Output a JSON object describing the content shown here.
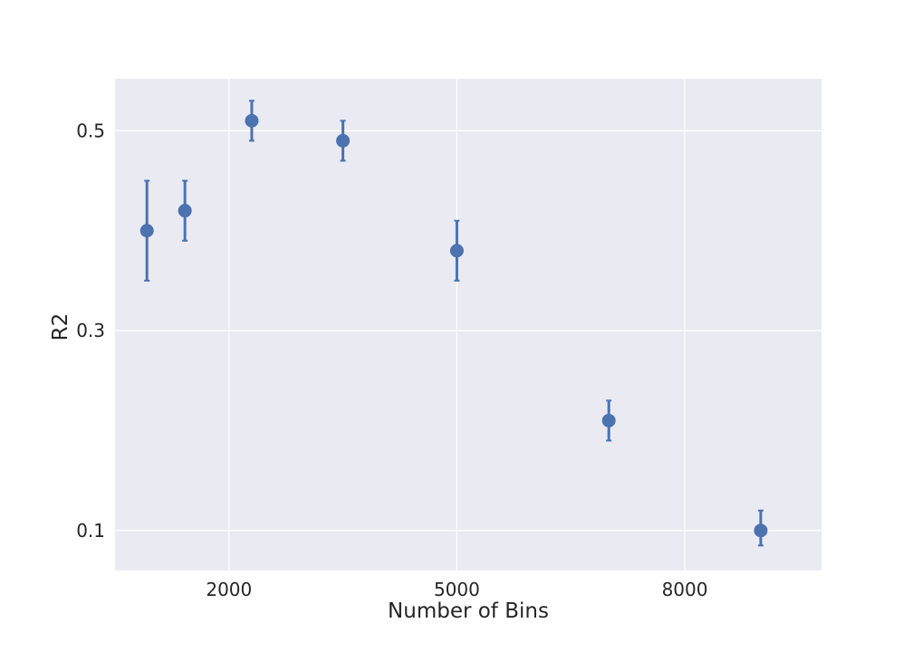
{
  "chart_data": {
    "type": "scatter",
    "title": "",
    "xlabel": "Number of Bins",
    "ylabel": "R2",
    "xlim": [
      500,
      9800
    ],
    "ylim": [
      0.06,
      0.552
    ],
    "x_ticks": [
      2000,
      5000,
      8000
    ],
    "y_ticks": [
      0.1,
      0.3,
      0.5
    ],
    "x_tick_labels": [
      "2000",
      "5000",
      "8000"
    ],
    "y_tick_labels": [
      "0.1",
      "0.3",
      "0.5"
    ],
    "grid": true,
    "series": [
      {
        "color": "#4c72b0",
        "points": [
          {
            "x": 920,
            "y": 0.4,
            "err_low": 0.35,
            "err_high": 0.45
          },
          {
            "x": 1420,
            "y": 0.42,
            "err_low": 0.39,
            "err_high": 0.45
          },
          {
            "x": 2300,
            "y": 0.51,
            "err_low": 0.49,
            "err_high": 0.53
          },
          {
            "x": 3500,
            "y": 0.49,
            "err_low": 0.47,
            "err_high": 0.51
          },
          {
            "x": 5000,
            "y": 0.38,
            "err_low": 0.35,
            "err_high": 0.41
          },
          {
            "x": 7000,
            "y": 0.21,
            "err_low": 0.19,
            "err_high": 0.23
          },
          {
            "x": 9000,
            "y": 0.1,
            "err_low": 0.085,
            "err_high": 0.12
          }
        ]
      }
    ]
  },
  "style": {
    "plot_background": "#eaeaf2",
    "grid_color": "#ffffff",
    "text_color": "#262626"
  }
}
